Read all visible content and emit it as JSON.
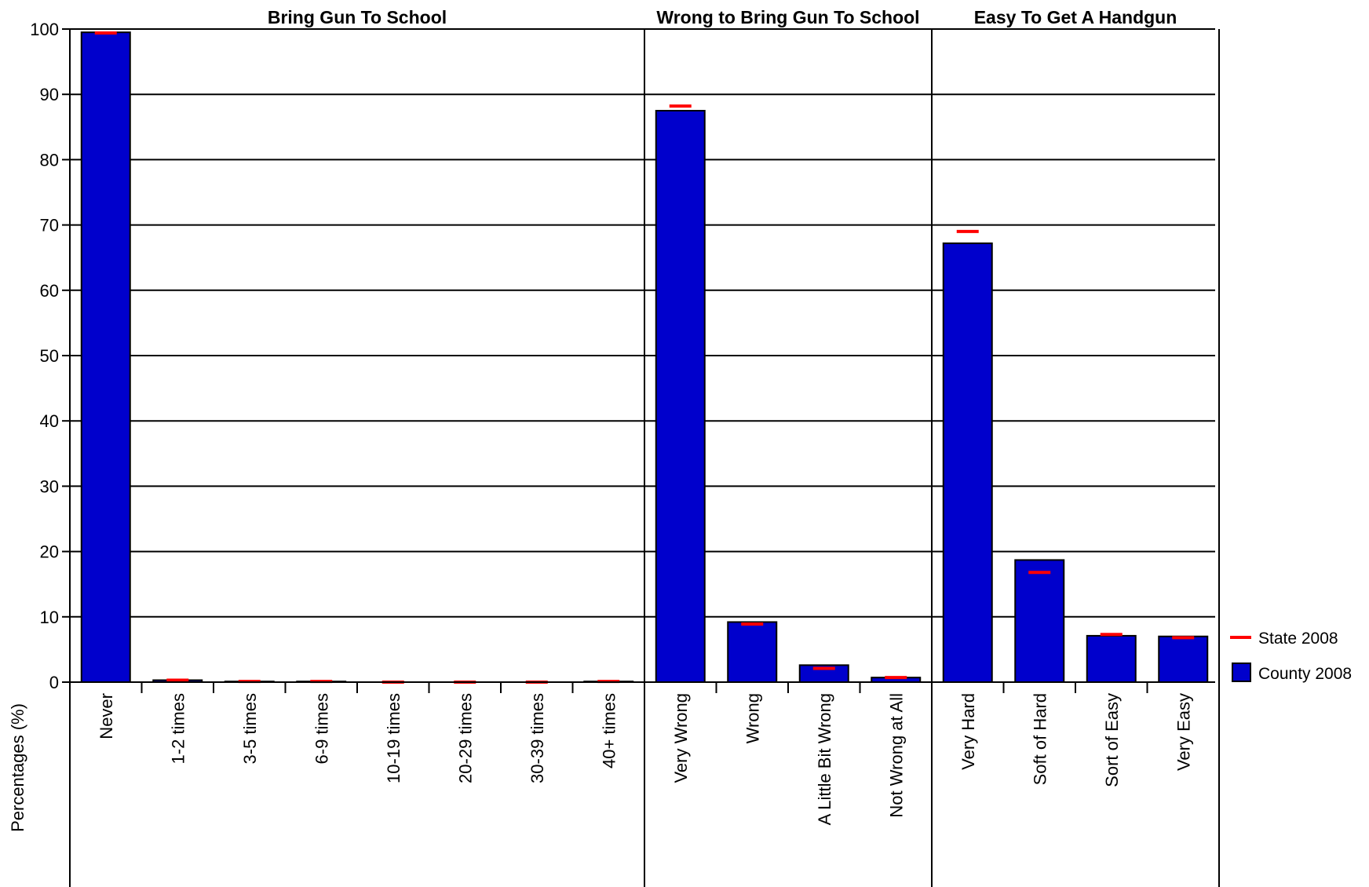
{
  "chart_data": {
    "type": "bar",
    "ylabel": "Percentages (%)",
    "xlabel": "",
    "ylim": [
      0,
      100
    ],
    "yticks": [
      0,
      10,
      20,
      30,
      40,
      50,
      60,
      70,
      80,
      90,
      100
    ],
    "grid": true,
    "legend_position": "right",
    "legend": [
      {
        "name": "State 2008",
        "marker": "red-line",
        "color": "#ff0000"
      },
      {
        "name": "County 2008",
        "marker": "blue-box",
        "color": "#0000cc"
      }
    ],
    "groups": [
      {
        "title": "Bring Gun To School",
        "categories": [
          "Never",
          "1-2 times",
          "3-5 times",
          "6-9 times",
          "10-19 times",
          "20-29 times",
          "30-39 times",
          "40+ times"
        ],
        "series": [
          {
            "name": "County 2008",
            "values": [
              99.5,
              0.3,
              0.1,
              0.1,
              0.0,
              0.0,
              0.0,
              0.1
            ]
          },
          {
            "name": "State 2008",
            "values": [
              99.4,
              0.3,
              0.1,
              0.1,
              0.0,
              0.0,
              0.0,
              0.1
            ]
          }
        ]
      },
      {
        "title": "Wrong to Bring Gun To School",
        "categories": [
          "Very Wrong",
          "Wrong",
          "A Little Bit Wrong",
          "Not Wrong at All"
        ],
        "series": [
          {
            "name": "County 2008",
            "values": [
              87.5,
              9.2,
              2.6,
              0.7
            ]
          },
          {
            "name": "State 2008",
            "values": [
              88.2,
              8.9,
              2.1,
              0.7
            ]
          }
        ]
      },
      {
        "title": "Easy To Get A Handgun",
        "categories": [
          "Very Hard",
          "Soft of Hard",
          "Sort of Easy",
          "Very Easy"
        ],
        "series": [
          {
            "name": "County 2008",
            "values": [
              67.2,
              18.7,
              7.1,
              7.0
            ]
          },
          {
            "name": "State 2008",
            "values": [
              69.0,
              16.8,
              7.3,
              6.8
            ]
          }
        ]
      }
    ]
  },
  "colors": {
    "county_fill": "#0000cc",
    "state_marker": "#ff0000",
    "axis": "#000000"
  }
}
